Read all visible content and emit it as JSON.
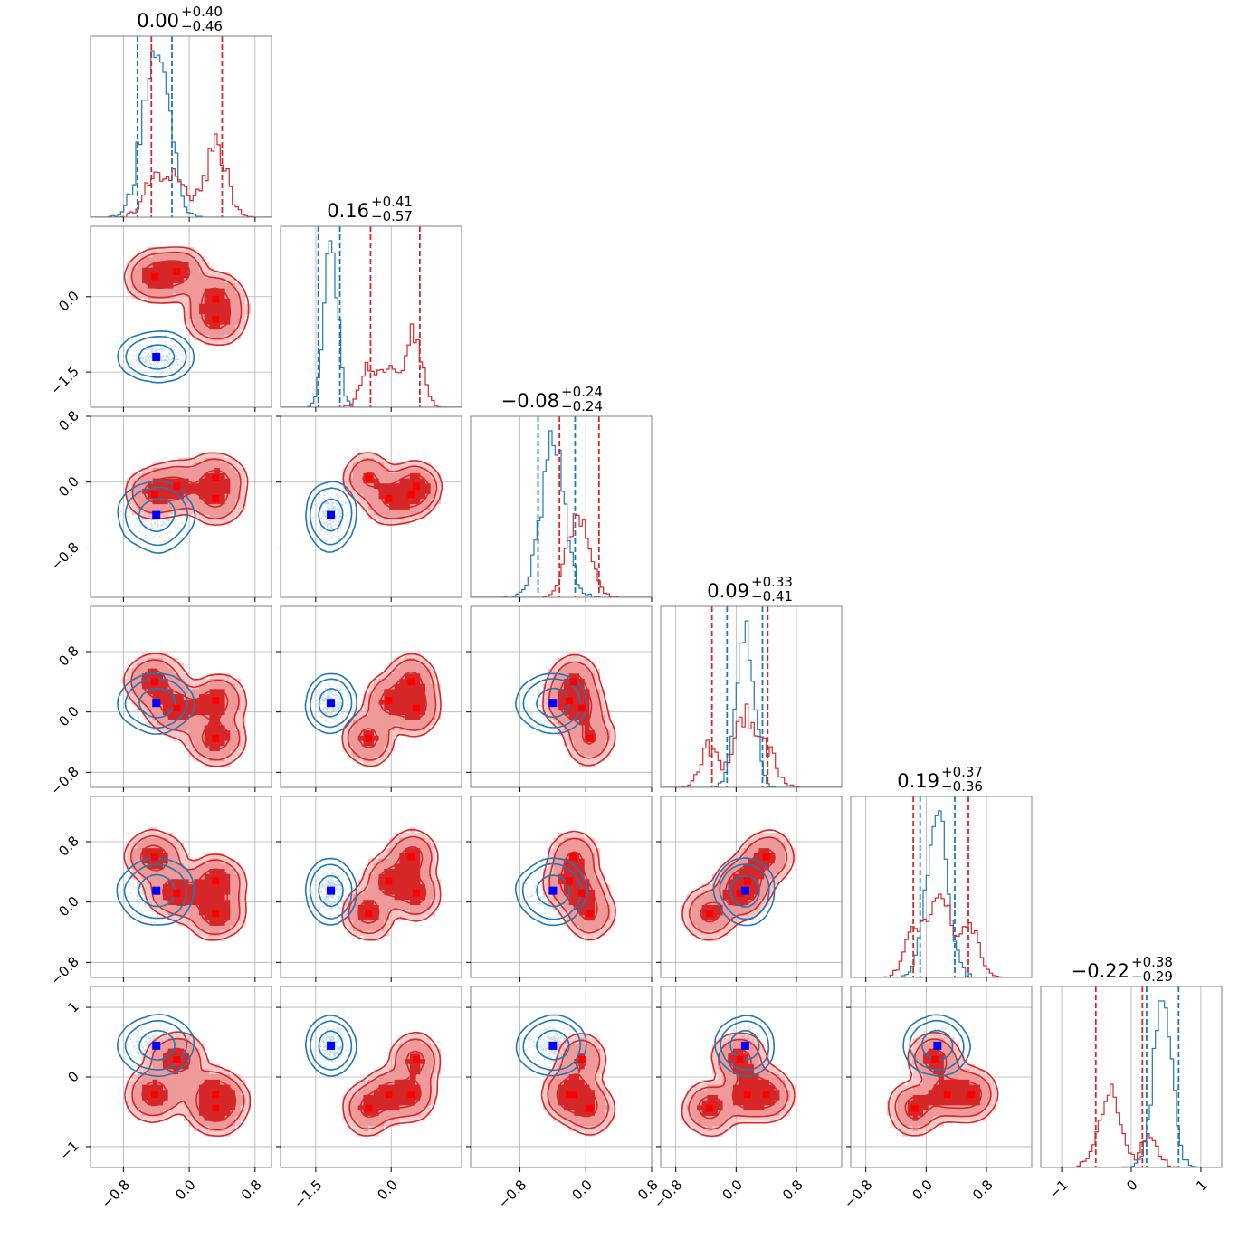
{
  "colors": {
    "red": "#d62728",
    "red_fill_outer": "#ef9a9a",
    "red_fill_inner": "#d62728",
    "blue": "#1f77b4",
    "marker_blue": "#0000ff",
    "marker_red": "#ff0000",
    "grid": "#b0b0b0"
  },
  "chart_data": {
    "type": "corner",
    "n_params": 6,
    "ranges": [
      [
        -1.2,
        1.0
      ],
      [
        -2.2,
        1.4
      ],
      [
        -1.4,
        0.8
      ],
      [
        -1.0,
        1.4
      ],
      [
        -1.0,
        1.4
      ],
      [
        -1.3,
        1.3
      ]
    ],
    "ticks": [
      {
        "values": [
          -0.8,
          0.0,
          0.8
        ],
        "labels": [
          "−0.8",
          "0.0",
          "0.8"
        ]
      },
      {
        "values": [
          -1.5,
          0.0
        ],
        "labels": [
          "−1.5",
          "0.0"
        ]
      },
      {
        "values": [
          -0.8,
          0.0,
          0.8
        ],
        "labels": [
          "−0.8",
          "0.0",
          "0.8"
        ]
      },
      {
        "values": [
          -0.8,
          0.0,
          0.8
        ],
        "labels": [
          "−0.8",
          "0.0",
          "0.8"
        ]
      },
      {
        "values": [
          -0.8,
          0.0,
          0.8
        ],
        "labels": [
          "−0.8",
          "0.0",
          "0.8"
        ]
      },
      {
        "values": [
          -1,
          0,
          1
        ],
        "labels": [
          "−1",
          "0",
          "1"
        ]
      }
    ],
    "titles": [
      {
        "main": "0.00",
        "plus": "+0.40",
        "minus": "−0.46"
      },
      {
        "main": "0.16",
        "plus": "+0.41",
        "minus": "−0.57"
      },
      {
        "main": "−0.08",
        "plus": "+0.24",
        "minus": "−0.24"
      },
      {
        "main": "0.09",
        "plus": "+0.33",
        "minus": "−0.41"
      },
      {
        "main": "0.19",
        "plus": "+0.37",
        "minus": "−0.36"
      },
      {
        "main": "−0.22",
        "plus": "+0.38",
        "minus": "−0.29"
      }
    ],
    "blue": {
      "mean": [
        -0.4,
        -1.2,
        -0.4,
        0.12,
        0.15,
        0.45
      ],
      "sd": [
        0.16,
        0.13,
        0.14,
        0.12,
        0.14,
        0.13
      ],
      "quantiles": [
        [
          -0.63,
          -0.21
        ],
        [
          -1.45,
          -1.02
        ],
        [
          -0.58,
          -0.13
        ],
        [
          -0.12,
          0.35
        ],
        [
          -0.08,
          0.38
        ],
        [
          0.22,
          0.68
        ]
      ]
    },
    "red": {
      "points": [
        [
          -0.42,
          0.4,
          -0.15,
          0.4,
          0.6,
          -0.25
        ],
        [
          -0.15,
          0.5,
          -0.05,
          0.05,
          0.12,
          0.25
        ],
        [
          0.32,
          -0.05,
          -0.2,
          0.15,
          0.28,
          -0.25
        ],
        [
          0.32,
          -0.45,
          0.05,
          -0.35,
          -0.15,
          -0.45
        ]
      ],
      "spread": [
        0.13,
        0.16,
        0.1,
        0.12,
        0.12,
        0.12
      ],
      "quantiles": [
        [
          -0.46,
          0.4
        ],
        [
          -0.41,
          0.57
        ],
        [
          -0.32,
          0.16
        ],
        [
          -0.32,
          0.42
        ],
        [
          -0.17,
          0.56
        ],
        [
          -0.51,
          0.16
        ]
      ]
    }
  }
}
